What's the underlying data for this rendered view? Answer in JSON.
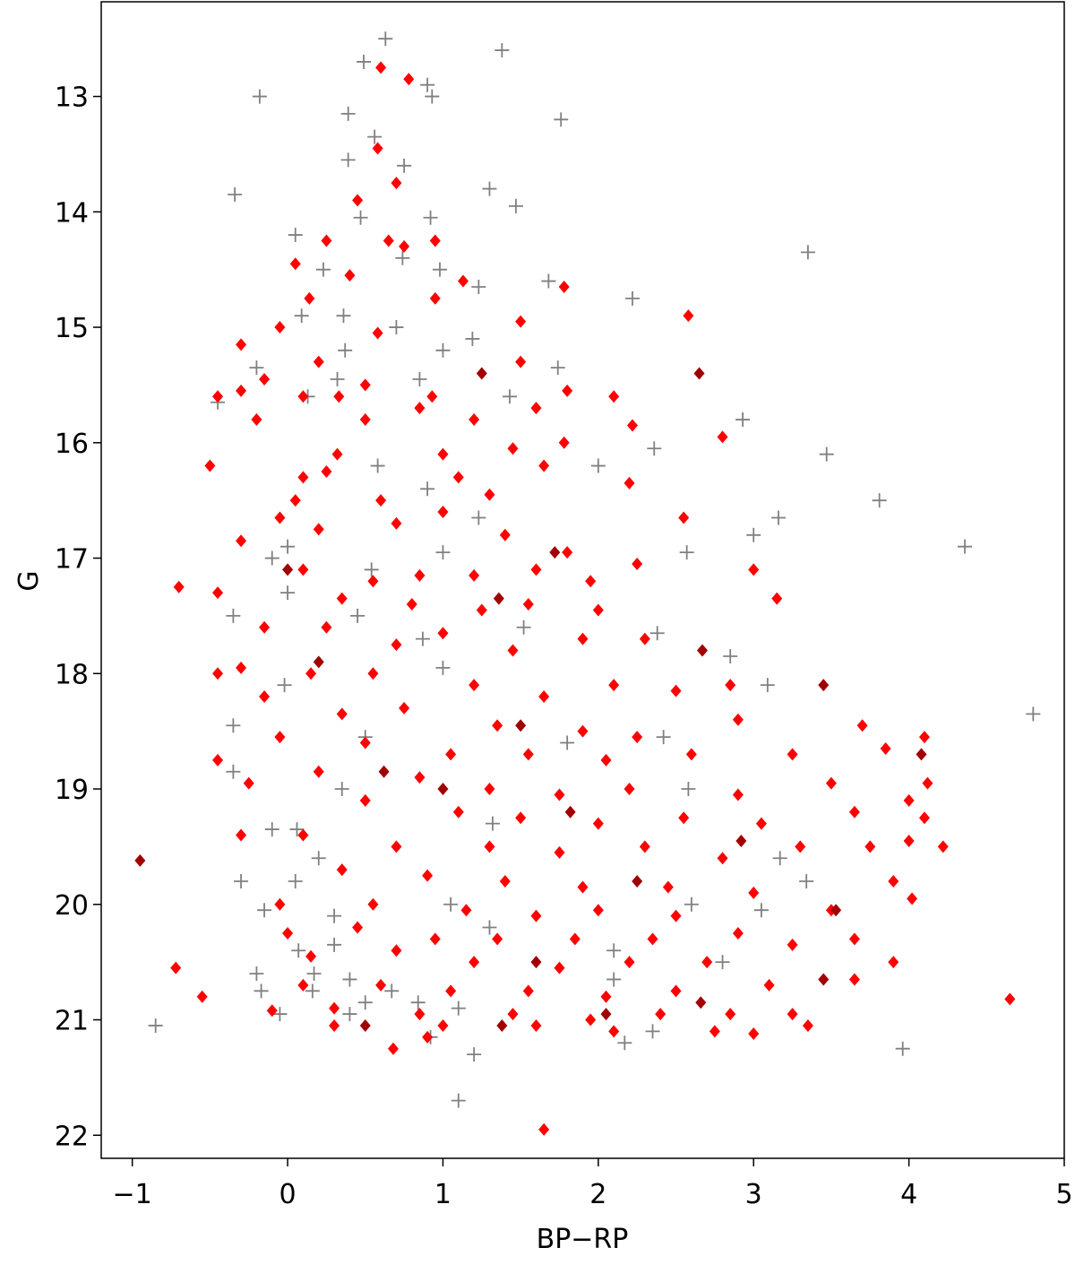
{
  "chart_data": {
    "type": "scatter",
    "xlabel": "BP−RP",
    "ylabel": "G",
    "xlim": [
      -1.2,
      5
    ],
    "ylim": [
      12.18,
      22.2
    ],
    "y_inverted": true,
    "xticks": [
      {
        "value": -1,
        "label": "−1"
      },
      0,
      1,
      2,
      3,
      4,
      5
    ],
    "yticks": [
      13,
      14,
      15,
      16,
      17,
      18,
      19,
      20,
      21,
      22
    ],
    "series": [
      {
        "color": "#808080",
        "marker": "plus",
        "x": [
          0.63,
          1.38,
          0.49,
          0.9,
          -0.18,
          0.93,
          0.39,
          1.76,
          0.56,
          0.39,
          0.75,
          1.3,
          -0.34,
          1.47,
          0.92,
          0.47,
          0.05,
          3.35,
          0.74,
          0.23,
          0.98,
          1.23,
          1.68,
          2.22,
          0.09,
          0.36,
          0.7,
          1.0,
          0.37,
          1.19,
          -0.2,
          0.32,
          1.74,
          0.85,
          0.13,
          1.43,
          -0.45,
          2.93,
          0.58,
          2.36,
          3.47,
          2.0,
          0.9,
          3.81,
          1.23,
          3.16,
          2.57,
          3.0,
          4.36,
          -0.1,
          0.0,
          0.54,
          1.0,
          0.0,
          -0.35,
          0.45,
          1.52,
          2.38,
          0.87,
          2.85,
          1.0,
          -0.02,
          3.09,
          4.8,
          -0.35,
          2.42,
          0.5,
          1.8,
          -0.35,
          0.35,
          2.58,
          0.06,
          -0.1,
          1.32,
          3.17,
          0.2,
          -0.3,
          3.34,
          0.05,
          1.05,
          2.6,
          -0.15,
          0.3,
          3.05,
          1.3,
          0.3,
          0.07,
          2.1,
          -0.2,
          0.17,
          0.4,
          2.1,
          -0.17,
          0.67,
          0.16,
          0.5,
          0.84,
          0.4,
          -0.05,
          1.1,
          -0.85,
          0.92,
          2.17,
          2.35,
          3.96,
          1.2,
          1.1,
          2.8
        ],
        "values": [
          12.5,
          12.6,
          12.7,
          12.9,
          13.0,
          13.0,
          13.15,
          13.2,
          13.35,
          13.55,
          13.6,
          13.8,
          13.85,
          13.95,
          14.05,
          14.05,
          14.2,
          14.35,
          14.4,
          14.5,
          14.5,
          14.65,
          14.6,
          14.75,
          14.9,
          14.9,
          15.0,
          15.2,
          15.2,
          15.1,
          15.35,
          15.45,
          15.35,
          15.45,
          15.6,
          15.6,
          15.65,
          15.8,
          16.2,
          16.05,
          16.1,
          16.2,
          16.4,
          16.5,
          16.65,
          16.65,
          16.95,
          16.8,
          16.9,
          17.0,
          16.9,
          17.1,
          16.95,
          17.3,
          17.5,
          17.5,
          17.6,
          17.65,
          17.7,
          17.85,
          17.95,
          18.1,
          18.1,
          18.35,
          18.45,
          18.55,
          18.55,
          18.6,
          18.85,
          19.0,
          19.0,
          19.35,
          19.35,
          19.3,
          19.6,
          19.6,
          19.8,
          19.8,
          19.8,
          20.0,
          20.0,
          20.05,
          20.1,
          20.05,
          20.2,
          20.35,
          20.4,
          20.4,
          20.6,
          20.6,
          20.65,
          20.65,
          20.75,
          20.75,
          20.75,
          20.85,
          20.85,
          20.95,
          20.95,
          20.9,
          21.05,
          21.15,
          21.2,
          21.1,
          21.25,
          21.3,
          21.7,
          20.5
        ]
      },
      {
        "color": "#ff0000",
        "marker": "diamond",
        "x": [
          0.6,
          0.78,
          0.58,
          0.7,
          0.45,
          0.25,
          0.65,
          0.75,
          0.95,
          0.05,
          0.4,
          1.13,
          0.14,
          0.95,
          1.78,
          -0.05,
          0.58,
          1.5,
          2.58,
          1.5,
          -0.3,
          0.2,
          -0.15,
          0.33,
          0.5,
          0.93,
          -0.45,
          -0.3,
          0.1,
          1.8,
          2.1,
          0.85,
          1.6,
          2.22,
          2.8,
          -0.2,
          0.5,
          1.2,
          1.45,
          1.78,
          0.32,
          1.0,
          -0.5,
          0.1,
          0.25,
          1.1,
          1.65,
          2.2,
          0.05,
          0.6,
          1.3,
          -0.05,
          1.0,
          2.55,
          0.7,
          1.4,
          -0.3,
          0.2,
          1.8,
          2.25,
          0.1,
          0.55,
          0.85,
          1.2,
          1.6,
          1.95,
          3.0,
          -0.7,
          -0.45,
          0.35,
          0.8,
          1.25,
          1.55,
          2.0,
          3.15,
          -0.15,
          0.25,
          0.7,
          1.0,
          1.45,
          1.9,
          2.3,
          -0.3,
          0.15,
          0.55,
          1.2,
          1.65,
          2.1,
          2.5,
          2.85,
          -0.45,
          -0.15,
          0.35,
          0.75,
          1.35,
          1.9,
          2.25,
          2.9,
          3.7,
          4.1,
          -0.05,
          0.5,
          1.05,
          1.55,
          2.05,
          2.6,
          3.25,
          3.85,
          -0.45,
          0.2,
          0.85,
          1.3,
          1.75,
          2.2,
          2.9,
          3.5,
          4.12,
          -0.25,
          0.5,
          1.1,
          1.5,
          2.0,
          2.55,
          3.05,
          3.65,
          4.0,
          4.1,
          -0.3,
          0.1,
          0.7,
          1.3,
          1.75,
          2.3,
          2.8,
          3.3,
          3.75,
          4.22,
          4.0,
          0.35,
          0.9,
          1.4,
          1.9,
          2.45,
          3.0,
          3.9,
          -0.05,
          0.55,
          1.15,
          1.6,
          2.0,
          2.5,
          3.5,
          4.02,
          0.0,
          0.45,
          0.95,
          1.35,
          1.85,
          2.35,
          2.9,
          3.25,
          3.65,
          0.15,
          0.7,
          1.2,
          1.75,
          2.2,
          2.7,
          3.9,
          -0.72,
          0.1,
          0.6,
          1.05,
          1.55,
          2.05,
          2.5,
          3.1,
          3.65,
          -0.55,
          -0.1,
          0.3,
          0.85,
          1.45,
          1.95,
          2.4,
          2.85,
          3.25,
          4.65,
          0.3,
          1.0,
          1.6,
          2.1,
          2.75,
          3.0,
          3.35,
          0.9,
          0.68,
          1.65
        ],
        "values": [
          12.75,
          12.85,
          13.45,
          13.75,
          13.9,
          14.25,
          14.25,
          14.3,
          14.25,
          14.45,
          14.55,
          14.6,
          14.75,
          14.75,
          14.65,
          15.0,
          15.05,
          14.95,
          14.9,
          15.3,
          15.15,
          15.3,
          15.45,
          15.6,
          15.5,
          15.6,
          15.6,
          15.55,
          15.6,
          15.55,
          15.6,
          15.7,
          15.7,
          15.85,
          15.95,
          15.8,
          15.8,
          15.8,
          16.05,
          16.0,
          16.1,
          16.1,
          16.2,
          16.3,
          16.25,
          16.3,
          16.2,
          16.35,
          16.5,
          16.5,
          16.45,
          16.65,
          16.6,
          16.65,
          16.7,
          16.8,
          16.85,
          16.75,
          16.95,
          17.05,
          17.1,
          17.2,
          17.15,
          17.15,
          17.1,
          17.2,
          17.1,
          17.25,
          17.3,
          17.35,
          17.4,
          17.45,
          17.4,
          17.45,
          17.35,
          17.6,
          17.6,
          17.75,
          17.65,
          17.8,
          17.7,
          17.7,
          17.95,
          18.0,
          18.0,
          18.1,
          18.2,
          18.1,
          18.15,
          18.1,
          18.0,
          18.2,
          18.35,
          18.3,
          18.45,
          18.5,
          18.55,
          18.4,
          18.45,
          18.55,
          18.55,
          18.6,
          18.7,
          18.7,
          18.75,
          18.7,
          18.7,
          18.65,
          18.75,
          18.85,
          18.9,
          19.0,
          19.05,
          19.0,
          19.05,
          18.95,
          18.95,
          18.95,
          19.1,
          19.2,
          19.25,
          19.3,
          19.25,
          19.3,
          19.2,
          19.1,
          19.25,
          19.4,
          19.4,
          19.5,
          19.5,
          19.55,
          19.5,
          19.6,
          19.5,
          19.5,
          19.5,
          19.45,
          19.7,
          19.75,
          19.8,
          19.85,
          19.85,
          19.9,
          19.8,
          20.0,
          20.0,
          20.05,
          20.1,
          20.05,
          20.1,
          20.05,
          19.95,
          20.25,
          20.2,
          20.3,
          20.3,
          20.3,
          20.3,
          20.25,
          20.35,
          20.3,
          20.45,
          20.4,
          20.5,
          20.55,
          20.5,
          20.5,
          20.5,
          20.55,
          20.7,
          20.7,
          20.75,
          20.75,
          20.8,
          20.75,
          20.7,
          20.65,
          20.8,
          20.92,
          20.9,
          20.95,
          20.95,
          21.0,
          20.95,
          20.95,
          20.95,
          20.82,
          21.05,
          21.05,
          21.05,
          21.1,
          21.1,
          21.12,
          21.05,
          21.15,
          21.25,
          21.95
        ]
      },
      {
        "color": "#a00000",
        "marker": "diamond",
        "x": [
          -0.95,
          2.65,
          1.25,
          1.36,
          1.72,
          0.2,
          2.67,
          3.45,
          4.08,
          0.62,
          1.82,
          2.92,
          3.53,
          1.6,
          3.45,
          0.5,
          1.38,
          2.66,
          2.25,
          1.0,
          1.5,
          0.0,
          2.05
        ],
        "values": [
          19.62,
          15.4,
          15.4,
          17.35,
          16.95,
          17.9,
          17.8,
          18.1,
          18.7,
          18.85,
          19.2,
          19.45,
          20.05,
          20.5,
          20.65,
          21.05,
          21.05,
          20.85,
          19.8,
          19.0,
          18.45,
          17.1,
          20.95
        ]
      }
    ]
  }
}
